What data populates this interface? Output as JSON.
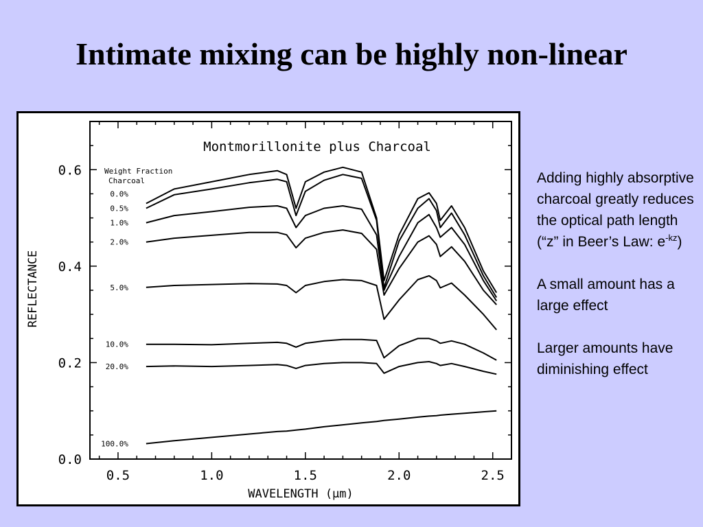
{
  "slide": {
    "title": "Intimate mixing can be highly non-linear"
  },
  "notes": {
    "p1_text": "Adding highly absorptive charcoal greatly reduces the optical path length (“z” in Beer’s Law: e",
    "p1_sup": "-kz",
    "p1_end": ")",
    "p2": "A small amount has a large effect",
    "p3": "Larger amounts have diminishing effect"
  },
  "colors": {
    "background": "#ccccff",
    "plot_line": "#000000"
  },
  "chart_data": {
    "type": "line",
    "title": "Montmorillonite plus Charcoal",
    "xlabel": "WAVELENGTH (μm)",
    "ylabel": "REFLECTANCE",
    "xlim": [
      0.35,
      2.6
    ],
    "ylim": [
      0.0,
      0.7
    ],
    "x_ticks": [
      "0.5",
      "1.0",
      "1.5",
      "2.0",
      "2.5"
    ],
    "y_ticks": [
      "0.0",
      "0.2",
      "0.4",
      "0.6"
    ],
    "legend_title_1": "Weight Fraction",
    "legend_title_2": "Charcoal",
    "grid": false,
    "x": [
      0.65,
      0.8,
      1.0,
      1.2,
      1.35,
      1.4,
      1.45,
      1.5,
      1.6,
      1.7,
      1.8,
      1.88,
      1.92,
      2.0,
      2.1,
      2.16,
      2.2,
      2.22,
      2.28,
      2.35,
      2.45,
      2.52
    ],
    "series": [
      {
        "name": "0.0%",
        "values": [
          0.53,
          0.56,
          0.575,
          0.59,
          0.598,
          0.59,
          0.52,
          0.575,
          0.595,
          0.605,
          0.595,
          0.5,
          0.37,
          0.465,
          0.54,
          0.552,
          0.53,
          0.495,
          0.525,
          0.48,
          0.39,
          0.345
        ]
      },
      {
        "name": "0.5%",
        "values": [
          0.52,
          0.548,
          0.56,
          0.573,
          0.58,
          0.575,
          0.505,
          0.555,
          0.578,
          0.59,
          0.582,
          0.495,
          0.355,
          0.452,
          0.52,
          0.54,
          0.515,
          0.48,
          0.51,
          0.465,
          0.38,
          0.335
        ]
      },
      {
        "name": "1.0%",
        "values": [
          0.49,
          0.505,
          0.513,
          0.522,
          0.525,
          0.52,
          0.48,
          0.505,
          0.52,
          0.525,
          0.518,
          0.465,
          0.35,
          0.42,
          0.49,
          0.507,
          0.48,
          0.46,
          0.48,
          0.445,
          0.37,
          0.328
        ]
      },
      {
        "name": "2.0%",
        "values": [
          0.45,
          0.458,
          0.464,
          0.47,
          0.47,
          0.465,
          0.438,
          0.458,
          0.47,
          0.475,
          0.468,
          0.435,
          0.34,
          0.395,
          0.45,
          0.463,
          0.445,
          0.42,
          0.44,
          0.41,
          0.35,
          0.32
        ]
      },
      {
        "name": "5.0%",
        "values": [
          0.356,
          0.36,
          0.362,
          0.364,
          0.363,
          0.36,
          0.345,
          0.36,
          0.368,
          0.372,
          0.37,
          0.36,
          0.29,
          0.33,
          0.372,
          0.38,
          0.37,
          0.355,
          0.365,
          0.34,
          0.3,
          0.268
        ]
      },
      {
        "name": "10.0%",
        "values": [
          0.238,
          0.238,
          0.237,
          0.24,
          0.242,
          0.24,
          0.232,
          0.24,
          0.245,
          0.248,
          0.248,
          0.246,
          0.21,
          0.235,
          0.25,
          0.25,
          0.245,
          0.24,
          0.245,
          0.238,
          0.22,
          0.205
        ]
      },
      {
        "name": "20.0%",
        "values": [
          0.192,
          0.193,
          0.192,
          0.194,
          0.196,
          0.194,
          0.188,
          0.194,
          0.198,
          0.2,
          0.2,
          0.198,
          0.178,
          0.192,
          0.2,
          0.202,
          0.198,
          0.194,
          0.198,
          0.192,
          0.182,
          0.176
        ]
      },
      {
        "name": "100.0%",
        "values": [
          0.032,
          0.038,
          0.045,
          0.052,
          0.057,
          0.058,
          0.06,
          0.062,
          0.067,
          0.071,
          0.075,
          0.078,
          0.08,
          0.083,
          0.087,
          0.089,
          0.09,
          0.091,
          0.093,
          0.095,
          0.098,
          0.1
        ]
      }
    ]
  }
}
